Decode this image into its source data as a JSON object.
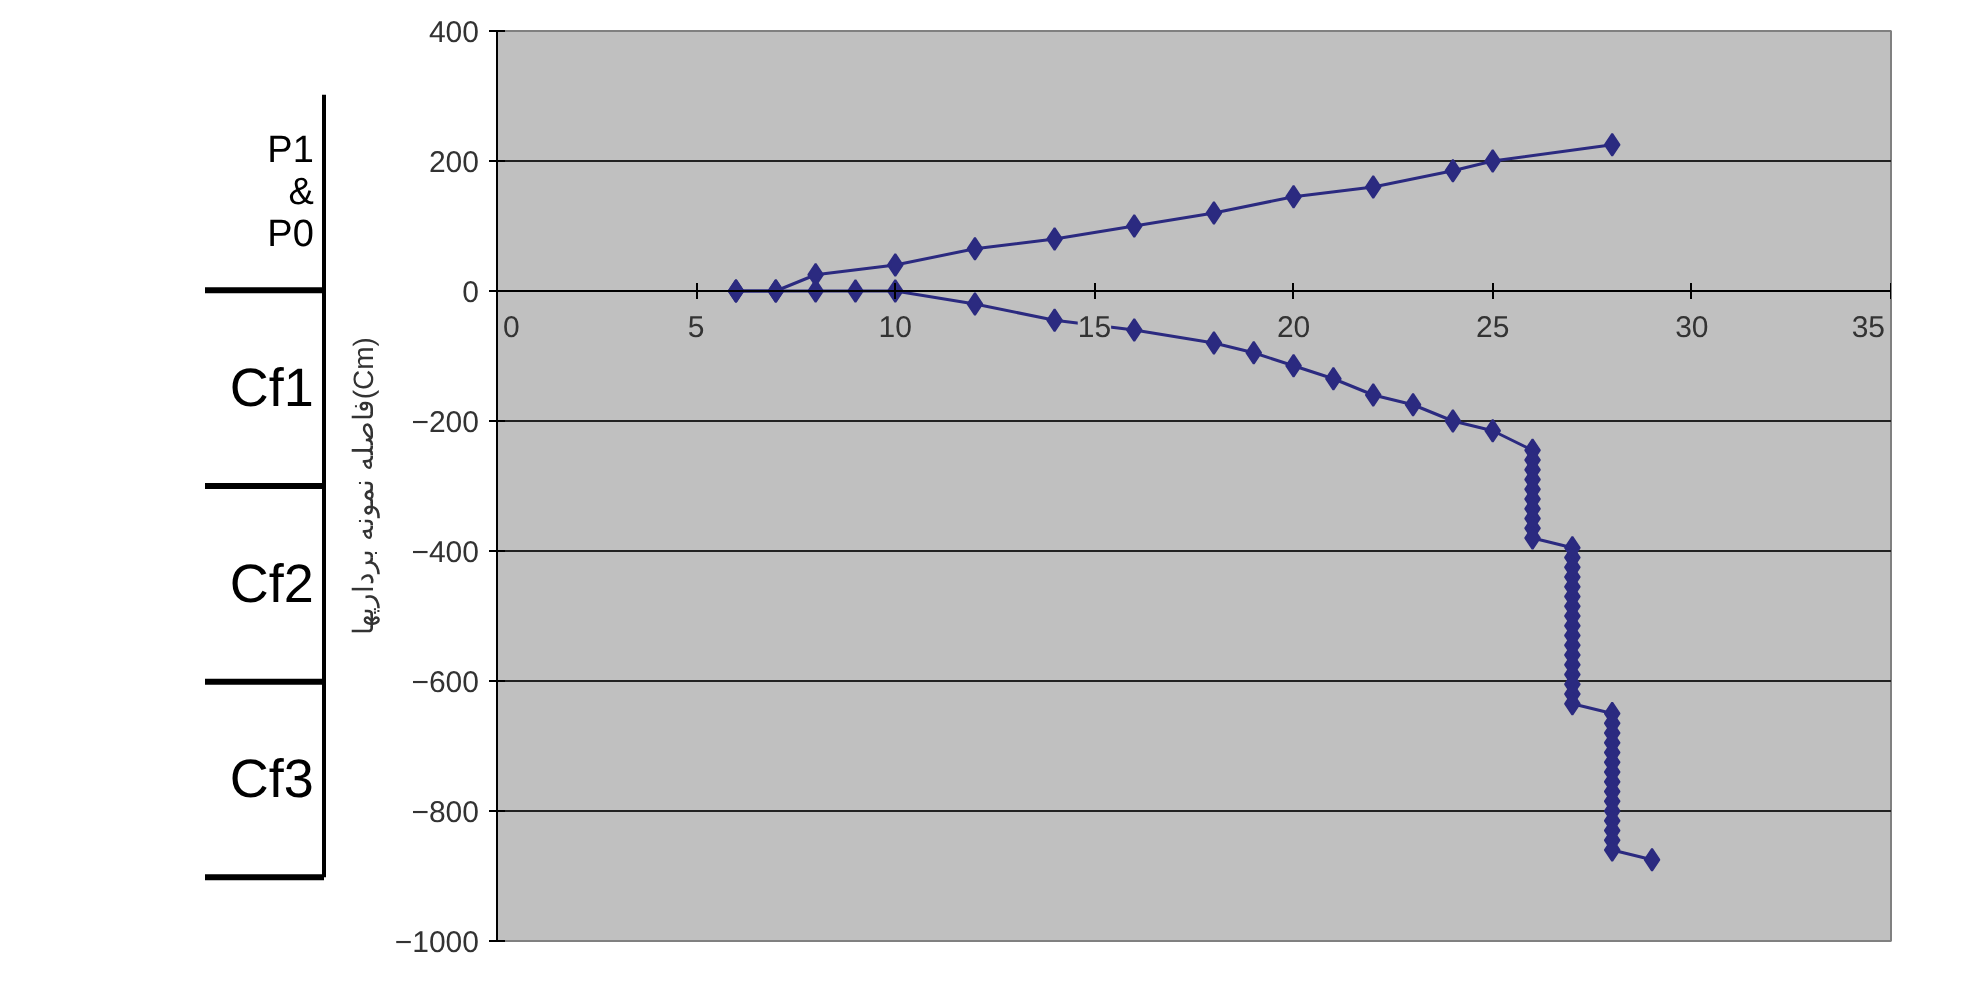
{
  "chart_data": {
    "type": "line",
    "ylabel": "فاصله نمونه بردارپها(Cm)",
    "annotations": [
      "P1\n&\nP0",
      "Cf1",
      "Cf2",
      "Cf3"
    ],
    "xlim": [
      0,
      35
    ],
    "xticks": [
      0,
      5,
      10,
      15,
      20,
      25,
      30,
      35
    ],
    "ylim": [
      -1000,
      400
    ],
    "yticks": [
      -1000,
      -800,
      -600,
      -400,
      -200,
      0,
      200,
      400
    ],
    "grid": "y",
    "marker": "diamond",
    "line_style": "solid",
    "series": [
      {
        "color": "#2b2a80",
        "x": [
          6,
          7,
          8,
          10,
          12,
          14,
          16,
          18,
          20,
          22,
          24,
          25,
          28
        ],
        "values": [
          0,
          0,
          25,
          40,
          65,
          80,
          100,
          120,
          145,
          160,
          185,
          200,
          225
        ]
      },
      {
        "color": "#2b2a80",
        "x": [
          6,
          7,
          8,
          9,
          10,
          12,
          14,
          16,
          18,
          19,
          20,
          21,
          22,
          23,
          24,
          25,
          26,
          26,
          26,
          26,
          26,
          26,
          26,
          26,
          26,
          26,
          27,
          27,
          27,
          27,
          27,
          27,
          27,
          27,
          27,
          27,
          27,
          27,
          27,
          27,
          27,
          27,
          27,
          28,
          28,
          28,
          28,
          28,
          28,
          28,
          28,
          28,
          28,
          28,
          28,
          28,
          28,
          28,
          29
        ],
        "values": [
          0,
          0,
          0,
          0,
          0,
          -20,
          -45,
          -60,
          -80,
          -95,
          -115,
          -135,
          -160,
          -175,
          -200,
          -215,
          -245,
          -260,
          -275,
          -290,
          -305,
          -320,
          -335,
          -350,
          -365,
          -380,
          -395,
          -410,
          -425,
          -440,
          -455,
          -470,
          -485,
          -500,
          -515,
          -530,
          -545,
          -560,
          -575,
          -590,
          -605,
          -620,
          -635,
          -650,
          -665,
          -680,
          -695,
          -710,
          -725,
          -740,
          -755,
          -770,
          -785,
          -800,
          -815,
          -830,
          -845,
          -860,
          -875
        ]
      }
    ]
  }
}
